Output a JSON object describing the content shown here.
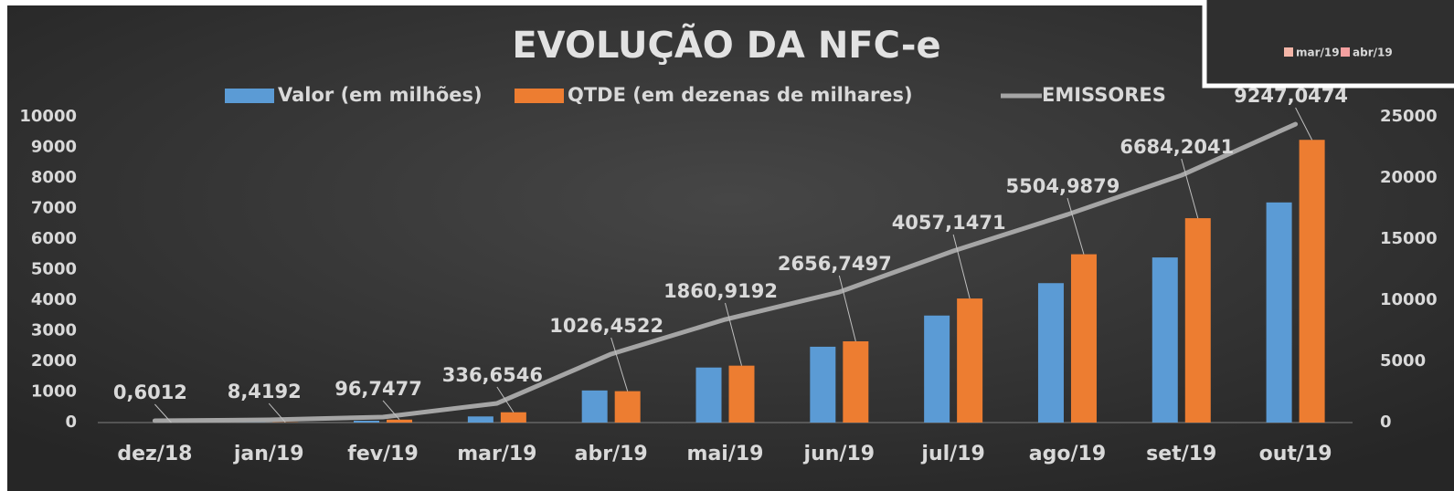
{
  "chart_data": {
    "type": "bar-line",
    "title": "EVOLUÇÃO DA NFC-e",
    "categories": [
      "dez/18",
      "jan/19",
      "fev/19",
      "mar/19",
      "abr/19",
      "mai/19",
      "jun/19",
      "jul/19",
      "ago/19",
      "set/19",
      "out/19"
    ],
    "series": [
      {
        "name": "Valor (em milhões)",
        "type": "bar",
        "color": "#5b9bd5",
        "values": [
          0,
          5,
          60,
          200,
          1050,
          1800,
          2480,
          3500,
          4560,
          5400,
          7200
        ]
      },
      {
        "name": "QTDE (em dezenas de milhares)",
        "type": "bar",
        "color": "#ed7d31",
        "values": [
          0.6012,
          8.4192,
          96.7477,
          336.6546,
          1026.4522,
          1860.9192,
          2656.7497,
          4057.1471,
          5504.9879,
          6684.2041,
          9247.0474
        ],
        "value_labels": [
          "0,6012",
          "8,4192",
          "96,7477",
          "336,6546",
          "1026,4522",
          "1860,9192",
          "2656,7497",
          "4057,1471",
          "5504,9879",
          "6684,2041",
          "9247,0474"
        ]
      },
      {
        "name": "EMISSORES",
        "type": "line",
        "axis": "y2",
        "color": "#a5a5a5",
        "values": [
          150,
          220,
          450,
          1570,
          5600,
          8430,
          10670,
          14030,
          17010,
          20220,
          24400
        ]
      }
    ],
    "ylim": [
      0,
      10000
    ],
    "yticks": [
      0,
      1000,
      2000,
      3000,
      4000,
      5000,
      6000,
      7000,
      8000,
      9000,
      10000
    ],
    "y2lim": [
      0,
      25000
    ],
    "y2ticks": [
      0,
      5000,
      10000,
      15000,
      20000,
      25000
    ],
    "legend": "top"
  },
  "inset_legend": [
    "mar/19",
    "abr/19"
  ]
}
